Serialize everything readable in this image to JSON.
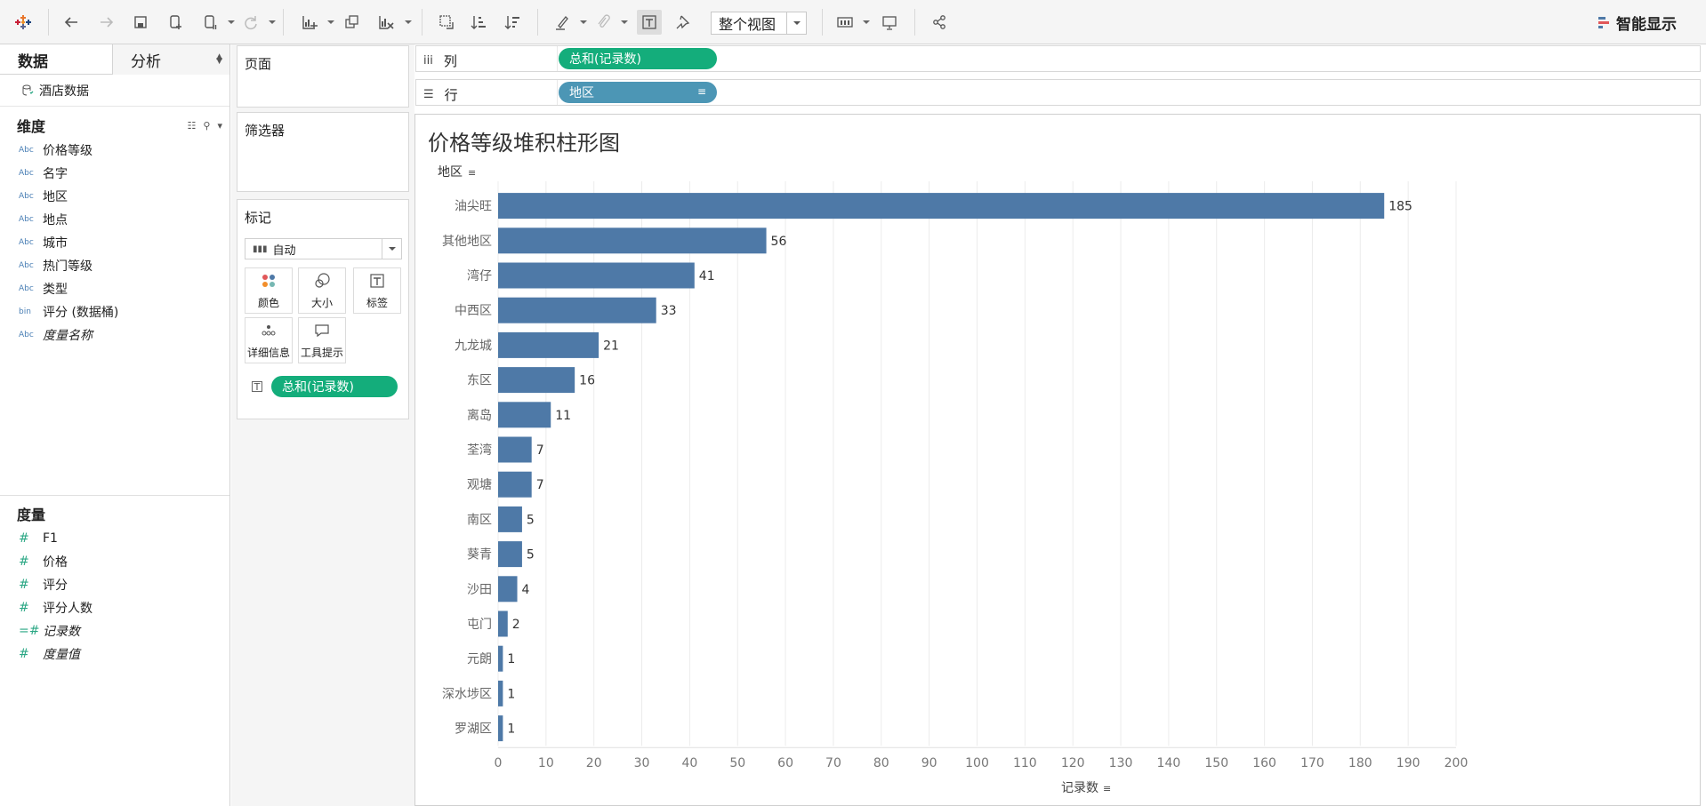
{
  "toolbar": {
    "view_select": "整个视图",
    "smart_show": "智能显示"
  },
  "left_pane": {
    "tabs": [
      "数据",
      "分析"
    ],
    "datasource": "酒店数据",
    "dimensions_title": "维度",
    "dimensions": [
      {
        "type": "Abc",
        "name": "价格等级"
      },
      {
        "type": "Abc",
        "name": "名字"
      },
      {
        "type": "Abc",
        "name": "地区"
      },
      {
        "type": "Abc",
        "name": "地点"
      },
      {
        "type": "Abc",
        "name": "城市"
      },
      {
        "type": "Abc",
        "name": "热门等级"
      },
      {
        "type": "Abc",
        "name": "类型"
      },
      {
        "type": "bin",
        "name": "评分 (数据桶)"
      },
      {
        "type": "Abc",
        "name": "度量名称"
      }
    ],
    "measures_title": "度量",
    "measures": [
      {
        "type": "#",
        "name": "F1"
      },
      {
        "type": "#",
        "name": "价格"
      },
      {
        "type": "#",
        "name": "评分"
      },
      {
        "type": "#",
        "name": "评分人数"
      },
      {
        "type": "=#",
        "name": "记录数"
      },
      {
        "type": "#",
        "name": "度量值"
      }
    ]
  },
  "cards": {
    "pages": "页面",
    "filters": "筛选器",
    "marks": "标记",
    "marks_type": "自动",
    "mark_buttons": [
      "颜色",
      "大小",
      "标签",
      "详细信息",
      "工具提示"
    ],
    "marks_pill": "总和(记录数)"
  },
  "shelves": {
    "columns_label": "列",
    "columns_pill": "总和(记录数)",
    "rows_label": "行",
    "rows_pill": "地区"
  },
  "chart_data": {
    "type": "bar",
    "orientation": "horizontal",
    "title": "价格等级堆积柱形图",
    "row_header": "地区",
    "xlabel": "记录数",
    "categories": [
      "油尖旺",
      "其他地区",
      "湾仔",
      "中西区",
      "九龙城",
      "东区",
      "离岛",
      "荃湾",
      "观塘",
      "南区",
      "葵青",
      "沙田",
      "屯门",
      "元朗",
      "深水埗区",
      "罗湖区"
    ],
    "values": [
      185,
      56,
      41,
      33,
      21,
      16,
      11,
      7,
      7,
      5,
      5,
      4,
      2,
      1,
      1,
      1
    ],
    "xlim": [
      0,
      200
    ],
    "xticks": [
      0,
      10,
      20,
      30,
      40,
      50,
      60,
      70,
      80,
      90,
      100,
      110,
      120,
      130,
      140,
      150,
      160,
      170,
      180,
      190,
      200
    ],
    "bar_color": "#4e79a7",
    "grid": "vertical"
  }
}
